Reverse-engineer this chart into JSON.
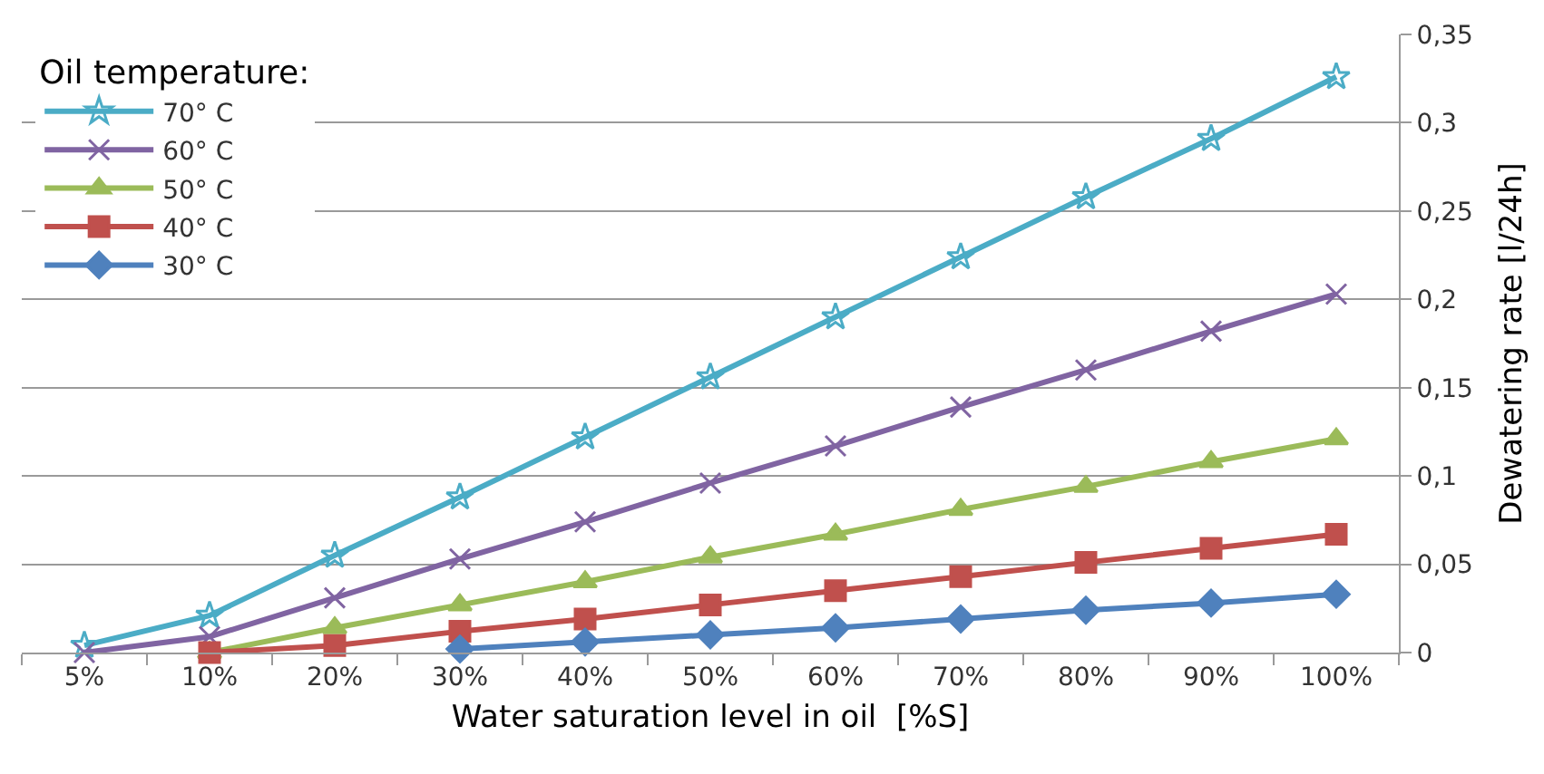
{
  "chart_data": {
    "type": "line",
    "xlabel": "Water saturation level in oil  [%S]",
    "ylabel": "Dewatering rate [l/24h]",
    "legend_title": "Oil temperature:",
    "categories": [
      "5%",
      "10%",
      "20%",
      "30%",
      "40%",
      "50%",
      "60%",
      "70%",
      "80%",
      "90%",
      "100%"
    ],
    "series": [
      {
        "name": "70° C",
        "color": "#4bacc6",
        "marker": "star",
        "values": [
          0.004,
          0.021,
          0.055,
          0.088,
          0.122,
          0.156,
          0.19,
          0.224,
          0.258,
          0.291,
          0.326
        ]
      },
      {
        "name": "60° C",
        "color": "#8064a2",
        "marker": "cross",
        "values": [
          0,
          0.009,
          0.031,
          0.053,
          0.074,
          0.096,
          0.117,
          0.139,
          0.16,
          0.182,
          0.203
        ]
      },
      {
        "name": "50° C",
        "color": "#9bbb59",
        "marker": "triangle",
        "values": [
          null,
          0,
          0.014,
          0.027,
          0.04,
          0.054,
          0.067,
          0.081,
          0.094,
          0.108,
          0.121
        ]
      },
      {
        "name": "40° C",
        "color": "#c0504d",
        "marker": "square",
        "values": [
          null,
          0,
          0.004,
          0.012,
          0.019,
          0.027,
          0.035,
          0.043,
          0.051,
          0.059,
          0.067
        ]
      },
      {
        "name": "30° C",
        "color": "#4f81bd",
        "marker": "diamond",
        "values": [
          null,
          null,
          null,
          0.002,
          0.006,
          0.01,
          0.014,
          0.019,
          0.024,
          0.028,
          0.033
        ]
      }
    ],
    "ylim": [
      0,
      0.35
    ],
    "yticks": [
      0,
      {
        "value": 0.05,
        "label": "0,05"
      },
      {
        "value": 0.1,
        "label": "0,1"
      },
      {
        "value": 0.15,
        "label": "0,15"
      },
      {
        "value": 0.2,
        "label": "0,2"
      },
      {
        "value": 0.25,
        "label": "0,25"
      },
      {
        "value": 0.3,
        "label": "0,3"
      },
      {
        "value": 0.35,
        "label": "0,35"
      }
    ],
    "grid": "y",
    "legend": "top left",
    "line_style": "solid"
  }
}
